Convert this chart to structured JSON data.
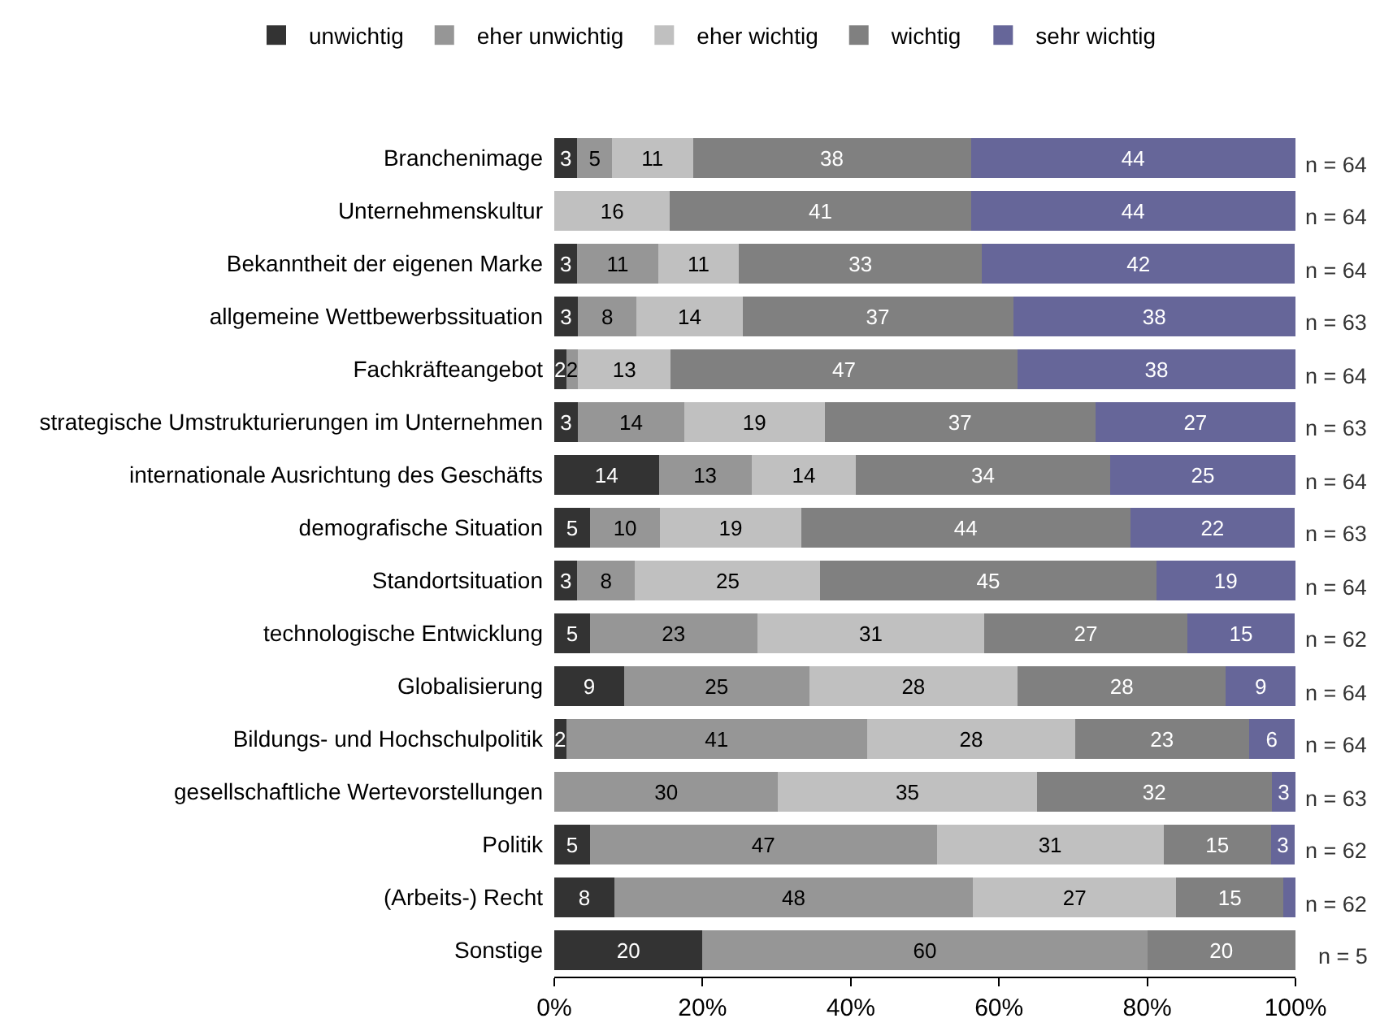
{
  "chart_data": {
    "type": "bar",
    "orientation": "horizontal",
    "stacked": true,
    "legend": "top",
    "categories": [
      "Branchenimage",
      "Unternehmenskultur",
      "Bekanntheit der eigenen Marke",
      "allgemeine Wettbewerbssituation",
      "Fachkräfteangebot",
      "strategische Umstrukturierungen im Unternehmen",
      "internationale Ausrichtung des Geschäfts",
      "demografische Situation",
      "Standortsituation",
      "technologische Entwicklung",
      "Globalisierung",
      "Bildungs- und Hochschulpolitik",
      "gesellschaftliche Wertevorstellungen",
      "Politik",
      "(Arbeits-) Recht",
      "Sonstige"
    ],
    "series": [
      {
        "name": "unwichtig",
        "color": "#333333",
        "values": [
          3.1,
          null,
          3.1,
          3.2,
          1.6,
          3.2,
          14.1,
          4.8,
          3.1,
          4.8,
          9.4,
          1.6,
          null,
          4.8,
          8.1,
          20
        ],
        "value_labels": [
          "3",
          null,
          "3",
          "3",
          "2",
          "3",
          "14",
          "5",
          "3",
          "5",
          "9",
          "2",
          null,
          "5",
          "8",
          "20"
        ]
      },
      {
        "name": "eher unwichtig",
        "color": "#969696",
        "values": [
          4.7,
          null,
          10.9,
          7.9,
          1.6,
          14.3,
          12.5,
          9.5,
          7.8,
          22.6,
          25.0,
          40.6,
          30.2,
          46.8,
          48.4,
          60
        ],
        "value_labels": [
          "5",
          null,
          "11",
          "8",
          "2",
          "14",
          "13",
          "10",
          "8",
          "23",
          "25",
          "41",
          "30",
          "47",
          "48",
          "60"
        ]
      },
      {
        "name": "eher wichtig",
        "color": "#c0c0c0",
        "values": [
          10.9,
          15.6,
          10.9,
          14.3,
          12.5,
          19.0,
          14.1,
          19.0,
          25.0,
          30.6,
          28.1,
          28.1,
          34.9,
          30.6,
          27.4,
          null
        ],
        "value_labels": [
          "11",
          "16",
          "11",
          "14",
          "13",
          "19",
          "14",
          "19",
          "25",
          "31",
          "28",
          "28",
          "35",
          "31",
          "27",
          null
        ]
      },
      {
        "name": "wichtig",
        "color": "#808080",
        "values": [
          37.5,
          40.6,
          32.8,
          36.5,
          46.8,
          36.5,
          34.3,
          44.4,
          45.3,
          27.4,
          28.1,
          23.4,
          31.7,
          14.5,
          14.5,
          20
        ],
        "value_labels": [
          "38",
          "41",
          "33",
          "37",
          "47",
          "37",
          "34",
          "44",
          "45",
          "27",
          "28",
          "23",
          "32",
          "15",
          "15",
          "20"
        ]
      },
      {
        "name": "sehr wichtig",
        "color": "#666699",
        "values": [
          43.8,
          43.8,
          42.2,
          38.1,
          37.5,
          27.0,
          25.0,
          22.2,
          18.8,
          14.5,
          9.4,
          6.2,
          3.2,
          3.2,
          1.6,
          null
        ],
        "value_labels": [
          "44",
          "44",
          "42",
          "38",
          "38",
          "27",
          "25",
          "22",
          "19",
          "15",
          "9",
          "6",
          "3",
          "3",
          null,
          null
        ]
      }
    ],
    "xlim": [
      0,
      100
    ],
    "xticks": [
      {
        "value": 0,
        "label": "0%"
      },
      {
        "value": 20,
        "label": "20%"
      },
      {
        "value": 40,
        "label": "40%"
      },
      {
        "value": 60,
        "label": "60%"
      },
      {
        "value": 80,
        "label": "80%"
      },
      {
        "value": 100,
        "label": "100%"
      }
    ],
    "annotations": [
      "n = 64",
      "n = 64",
      "n = 64",
      "n = 63",
      "n = 64",
      "n = 63",
      "n = 64",
      "n = 63",
      "n = 64",
      "n = 62",
      "n = 64",
      "n = 64",
      "n = 63",
      "n = 62",
      "n = 62",
      "n = 5"
    ]
  }
}
